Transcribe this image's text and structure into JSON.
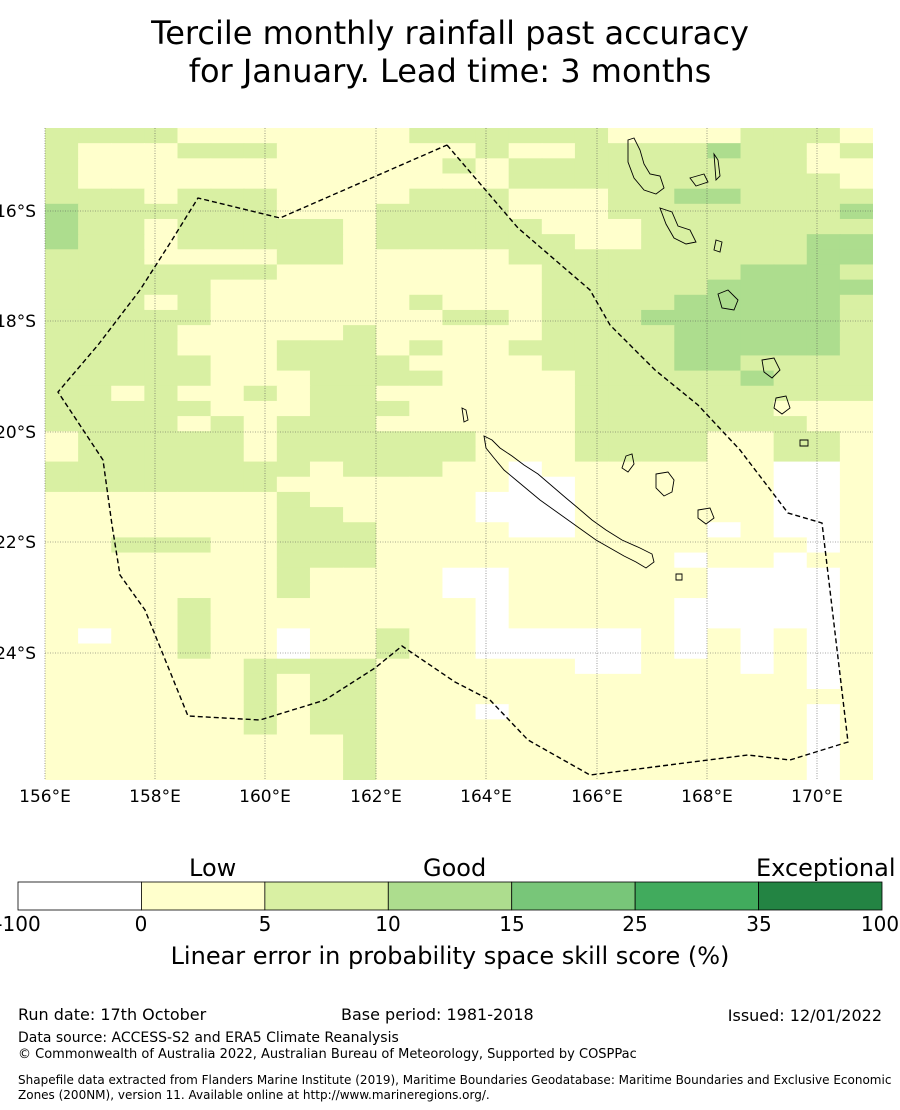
{
  "title": {
    "line1": "Tercile monthly rainfall past accuracy",
    "line2": "for January. Lead time: 3 months"
  },
  "map": {
    "lon_labels": [
      "156°E",
      "158°E",
      "160°E",
      "162°E",
      "164°E",
      "166°E",
      "168°E",
      "170°E"
    ],
    "lat_labels": [
      "16°S",
      "18°S",
      "20°S",
      "22°S",
      "24°S"
    ],
    "legend_colors": [
      "#ffffff",
      "#ffffcc",
      "#d9f0a3",
      "#addd8e",
      "#78c679",
      "#41ab5d",
      "#238443"
    ],
    "grid_rows": [
      "2222111111122222211112221",
      "2111222111111211222232212",
      "2111111111112122222222211",
      "2111111111111122222222221",
      "2221222111122211122332222",
      "3222222111222211122222223",
      "3221222221222221112222222",
      "3221222221222222112222233",
      "2221111221111122222222233",
      "2222222111111112222223332",
      "2222211111111112222233333",
      "2221211111121112222333332",
      "2222211111112212223333332",
      "2222111112111112222333332",
      "2222111222121122222333332",
      "2222211222211112222332222",
      "2222211122221111222223222",
      "2212112122111111222222222",
      "2222211122211111222222111",
      "2222121222111111222222211",
      "1222221222222111222211221",
      "1222221222222111222211221",
      "2222222212221101111111001",
      "2222222111111100111111001",
      "1111111211111000111111001",
      "1111111221111000111111001",
      "1111111222111100111101001",
      "1122211222111111111111101",
      "1111111222111111111011011",
      "1111111211110011111100001",
      "1111111211110011111100001",
      "1111211111111011111000001",
      "1111211111111011111000001",
      "1011211011211000001010101",
      "1111211011211000001010101",
      "1111112222111111001110101",
      "1111112122111111111111101",
      "1111112122111111111111111",
      "1111112122111011111111101",
      "1111112122111111111111101",
      "1111111112111111111111101",
      "1111111112111111111111101",
      "1111111112111111111111101"
    ]
  },
  "colorbar": {
    "headers": [
      "Low",
      "Good",
      "Exceptional"
    ],
    "ticks": [
      "-100",
      "0",
      "5",
      "10",
      "15",
      "25",
      "35",
      "100"
    ],
    "title": "Linear error in probability space skill score (%)"
  },
  "footer": {
    "run_date": "Run date: 17th October",
    "base_period": "Base period: 1981-2018",
    "issued": "Issued: 12/01/2022",
    "data_source": "Data source: ACCESS-S2 and ERA5 Climate Reanalysis",
    "copyright": "© Commonwealth of Australia 2022, Australian Bureau of Meteorology, Supported by COSPPac",
    "shapefile_1": "Shapefile data extracted from Flanders Marine Institute (2019), Maritime Boundaries Geodatabase: Maritime Boundaries and Exclusive Economic",
    "shapefile_2": "Zones (200NM), version 11. Available online at http://www.marineregions.org/."
  }
}
